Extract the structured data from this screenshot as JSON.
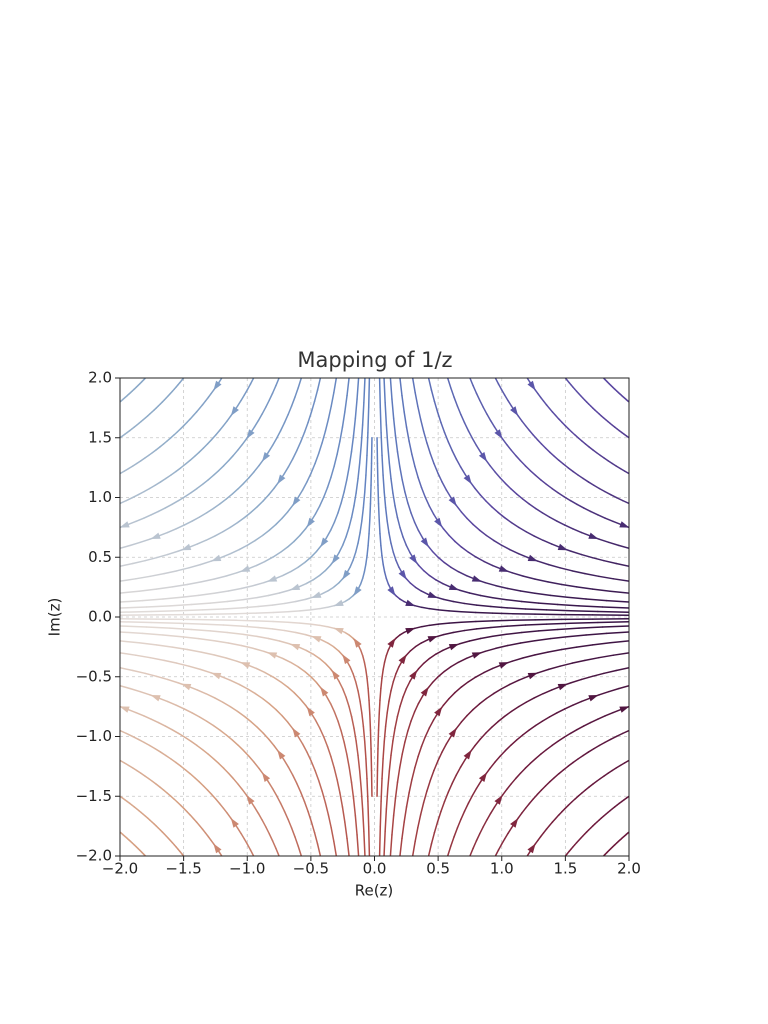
{
  "chart_data": {
    "type": "streamplot",
    "title": "Mapping of 1/z",
    "x_label": "Re(z)",
    "y_label": "Im(z)",
    "xlim": [
      -2,
      2
    ],
    "ylim": [
      -2,
      2
    ],
    "xticks": [
      {
        "value": -2,
        "label": "−2.0"
      },
      {
        "value": -1.5,
        "label": "−1.5"
      },
      {
        "value": -1,
        "label": "−1.0"
      },
      {
        "value": -0.5,
        "label": "−0.5"
      },
      {
        "value": 0,
        "label": "0.0"
      },
      0.5,
      {
        "value": 1,
        "label": "1.0"
      },
      1.5,
      {
        "value": 2,
        "label": "2.0"
      }
    ],
    "yticks": [
      {
        "value": -2,
        "label": "−2.0"
      },
      {
        "value": -1.5,
        "label": "−1.5"
      },
      {
        "value": -1,
        "label": "−1.0"
      },
      {
        "value": -0.5,
        "label": "−0.5"
      },
      {
        "value": 0,
        "label": "0.0"
      },
      0.5,
      {
        "value": 1,
        "label": "1.0"
      },
      1.5,
      {
        "value": 2,
        "label": "2.0"
      }
    ],
    "grid": true
  }
}
